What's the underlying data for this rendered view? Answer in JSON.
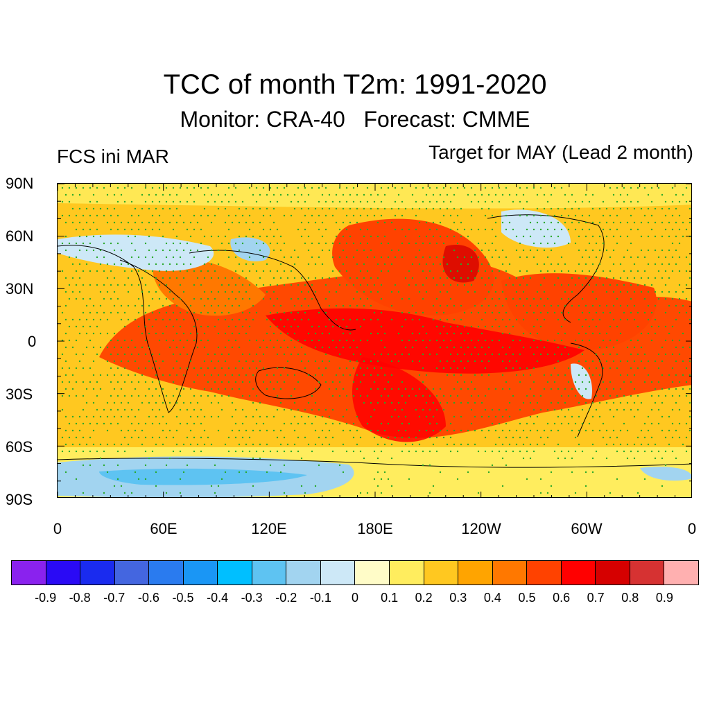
{
  "title": "TCC of month T2m: 1991-2020",
  "subtitle": "Monitor: CRA-40   Forecast: CMME",
  "left_string": "FCS ini MAR",
  "right_string": "Target for MAY (Lead 2 month)",
  "lat_labels": [
    "90N",
    "60N",
    "30N",
    "0",
    "30S",
    "60S",
    "90S"
  ],
  "lon_labels": [
    "0",
    "60E",
    "120E",
    "180E",
    "120W",
    "60W",
    "0"
  ],
  "colorbar": {
    "colors": [
      "#8a22ee",
      "#2a0af5",
      "#1a2bef",
      "#4466e0",
      "#2a7bef",
      "#1a96f5",
      "#00bfff",
      "#5ec3f2",
      "#a2d4f0",
      "#cde8f7",
      "#fffcc8",
      "#ffed5e",
      "#ffc820",
      "#ffa400",
      "#ff7800",
      "#ff4200",
      "#ff0000",
      "#d60000",
      "#d63232",
      "#ffb0b0"
    ],
    "labels": [
      "-0.9",
      "-0.8",
      "-0.7",
      "-0.6",
      "-0.5",
      "-0.4",
      "-0.3",
      "-0.2",
      "-0.1",
      "0",
      "0.1",
      "0.2",
      "0.3",
      "0.4",
      "0.5",
      "0.6",
      "0.7",
      "0.8",
      "0.9"
    ]
  },
  "stipple_color": "#2aa82a",
  "coast_color": "#000000"
}
